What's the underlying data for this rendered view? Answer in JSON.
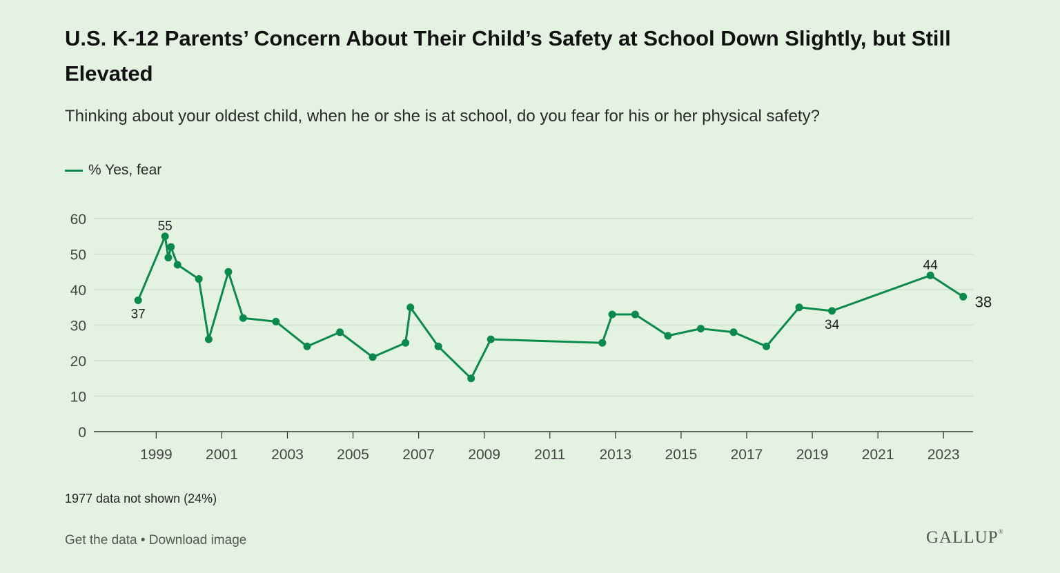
{
  "title": "U.S. K-12 Parents’ Concern About Their Child’s Safety at School Down Slightly, but Still Elevated",
  "subtitle": "Thinking about your oldest child, when he or she is at school, do you fear for his or her physical safety?",
  "legend_label": "% Yes, fear",
  "footnote": "1977 data not shown (24%)",
  "links": {
    "get_data": "Get the data",
    "separator": "•",
    "download": "Download image"
  },
  "brand": "GALLUP",
  "colors": {
    "line": "#0a8a4a",
    "grid": "#cfdccd",
    "axis": "#333333",
    "background": "#e3f2e1"
  },
  "chart_data": {
    "type": "line",
    "title": "U.S. K-12 Parents’ Concern About Their Child’s Safety at School Down Slightly, but Still Elevated",
    "xlabel": "",
    "ylabel": "",
    "ylim": [
      0,
      60
    ],
    "yticks": [
      0,
      10,
      20,
      30,
      40,
      50,
      60
    ],
    "xlim": [
      1997.1,
      2023.9
    ],
    "xticks": [
      1999,
      2001,
      2003,
      2005,
      2007,
      2009,
      2011,
      2013,
      2015,
      2017,
      2019,
      2021,
      2023
    ],
    "grid": true,
    "legend_position": "top-left",
    "series": [
      {
        "name": "% Yes, fear",
        "x": [
          1998.45,
          1999.27,
          1999.37,
          1999.45,
          1999.65,
          2000.3,
          2000.6,
          2001.2,
          2001.65,
          2002.65,
          2003.6,
          2004.6,
          2005.6,
          2006.6,
          2006.75,
          2007.6,
          2008.6,
          2009.2,
          2012.6,
          2012.9,
          2013.6,
          2014.6,
          2015.6,
          2016.6,
          2017.6,
          2018.6,
          2019.6,
          2022.6,
          2023.6
        ],
        "values": [
          37,
          55,
          49,
          52,
          47,
          43,
          26,
          45,
          32,
          31,
          24,
          28,
          21,
          25,
          35,
          24,
          15,
          26,
          25,
          33,
          33,
          27,
          29,
          28,
          24,
          35,
          34,
          44,
          38
        ]
      }
    ],
    "annotations": [
      {
        "index": 0,
        "text": "37",
        "position": "below"
      },
      {
        "index": 1,
        "text": "55",
        "position": "above"
      },
      {
        "index": 26,
        "text": "34",
        "position": "below"
      },
      {
        "index": 27,
        "text": "44",
        "position": "above"
      },
      {
        "index": 28,
        "text": "38",
        "position": "right"
      }
    ]
  }
}
